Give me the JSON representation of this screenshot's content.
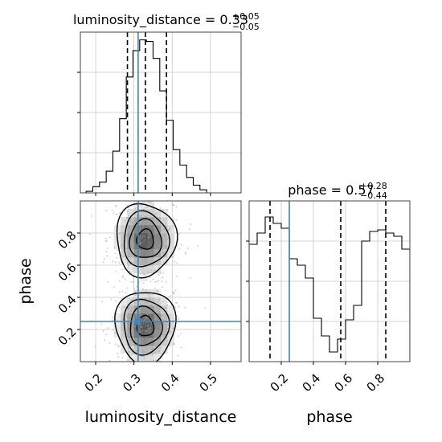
{
  "chart_data": [
    {
      "type": "histogram",
      "panel": "luminosity_distance-marginal",
      "title_param": "luminosity_distance",
      "title_value": "0.33",
      "title_plus": "+0.05",
      "title_minus": "−0.05",
      "xlim": [
        0.16,
        0.58
      ],
      "xticks": [
        0.2,
        0.3,
        0.4,
        0.5
      ],
      "bins": [
        0.175,
        0.1925,
        0.21,
        0.2275,
        0.245,
        0.2625,
        0.28,
        0.2975,
        0.315,
        0.3325,
        0.35,
        0.3675,
        0.385,
        0.4025,
        0.42,
        0.4375,
        0.455,
        0.4725,
        0.49
      ],
      "counts": [
        1,
        4,
        7,
        14,
        27,
        48,
        75,
        92,
        99,
        98,
        87,
        66,
        47,
        28,
        18,
        10,
        5,
        2
      ],
      "ymax": 104,
      "quantiles": [
        0.283,
        0.33,
        0.385
      ],
      "truth": 0.311
    },
    {
      "type": "histogram",
      "panel": "phase-marginal",
      "title_param": "phase",
      "title_value": "0.57",
      "title_plus": "+0.28",
      "title_minus": "−0.44",
      "xlim": [
        0.0,
        1.0
      ],
      "xticks": [
        0.2,
        0.4,
        0.6,
        0.8
      ],
      "bins": [
        0.0,
        0.05,
        0.1,
        0.15,
        0.2,
        0.25,
        0.3,
        0.35,
        0.4,
        0.45,
        0.5,
        0.55,
        0.6,
        0.65,
        0.7,
        0.75,
        0.8,
        0.85,
        0.9,
        0.95,
        1.0
      ],
      "counts": [
        73,
        80,
        90,
        86,
        83,
        64,
        60,
        52,
        27,
        16,
        6,
        14,
        26,
        35,
        75,
        81,
        82,
        80,
        78,
        70
      ],
      "ymax": 100,
      "quantiles": [
        0.13,
        0.57,
        0.85
      ],
      "truth": 0.25
    },
    {
      "type": "contour",
      "panel": "luminosity_distance-vs-phase",
      "xlabel": "luminosity_distance",
      "ylabel": "phase",
      "xlim": [
        0.16,
        0.58
      ],
      "ylim": [
        0.0,
        1.0
      ],
      "xticks": [
        0.2,
        0.3,
        0.4,
        0.5
      ],
      "yticks": [
        0.2,
        0.4,
        0.6,
        0.8
      ],
      "truth": {
        "x": 0.311,
        "y": 0.25
      },
      "blobs": [
        {
          "cx": 0.33,
          "cy": 0.22,
          "sx": 0.038,
          "sy": 0.11
        },
        {
          "cx": 0.33,
          "cy": 0.76,
          "sx": 0.038,
          "sy": 0.11
        }
      ],
      "levels": [
        0.12,
        0.3,
        0.55,
        0.85
      ]
    }
  ]
}
